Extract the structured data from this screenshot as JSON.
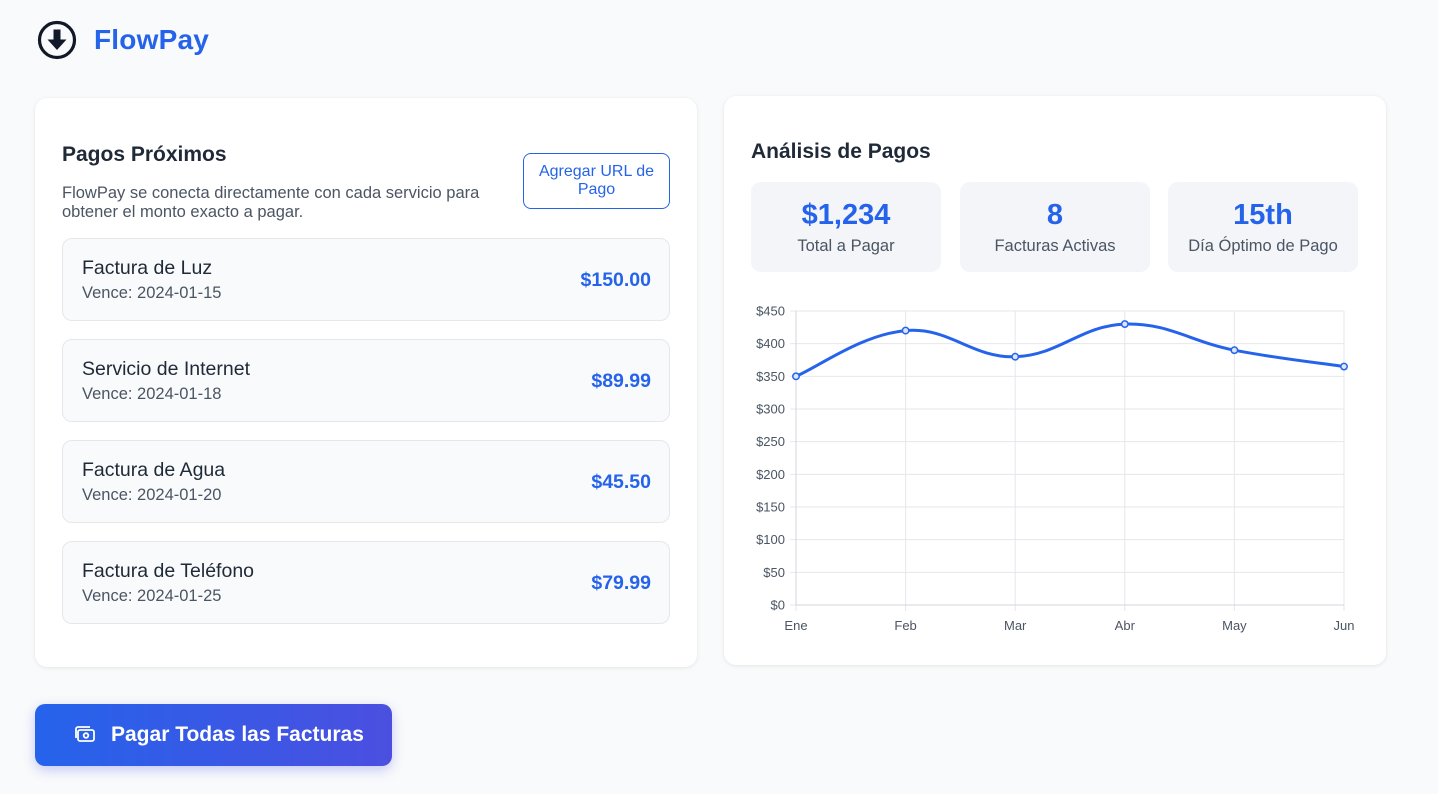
{
  "app": {
    "brand": "FlowPay"
  },
  "upcoming": {
    "title": "Pagos Próximos",
    "description": "FlowPay se conecta directamente con cada servicio para obtener el monto exacto a pagar.",
    "add_url_label": "Agregar URL de Pago",
    "bills": [
      {
        "name": "Factura de Luz",
        "due": "Vence: 2024-01-15",
        "amount": "$150.00"
      },
      {
        "name": "Servicio de Internet",
        "due": "Vence: 2024-01-18",
        "amount": "$89.99"
      },
      {
        "name": "Factura de Agua",
        "due": "Vence: 2024-01-20",
        "amount": "$45.50"
      },
      {
        "name": "Factura de Teléfono",
        "due": "Vence: 2024-01-25",
        "amount": "$79.99"
      }
    ]
  },
  "analysis": {
    "title": "Análisis de Pagos",
    "stats": [
      {
        "value": "$1,234",
        "label": "Total a Pagar"
      },
      {
        "value": "8",
        "label": "Facturas Activas"
      },
      {
        "value": "15th",
        "label": "Día Óptimo de Pago"
      }
    ]
  },
  "chart_data": {
    "type": "line",
    "categories": [
      "Ene",
      "Feb",
      "Mar",
      "Abr",
      "May",
      "Jun"
    ],
    "series": [
      {
        "values": [
          350,
          420,
          380,
          430,
          390,
          365
        ]
      }
    ],
    "ylim": [
      0,
      450
    ],
    "yticks": [
      0,
      50,
      100,
      150,
      200,
      250,
      300,
      350,
      400,
      450
    ],
    "ytick_labels": [
      "$0",
      "$50",
      "$100",
      "$150",
      "$200",
      "$250",
      "$300",
      "$350",
      "$400",
      "$450"
    ],
    "grid": true,
    "color": "#2563eb"
  },
  "actions": {
    "pay_all_label": "Pagar Todas las Facturas"
  }
}
